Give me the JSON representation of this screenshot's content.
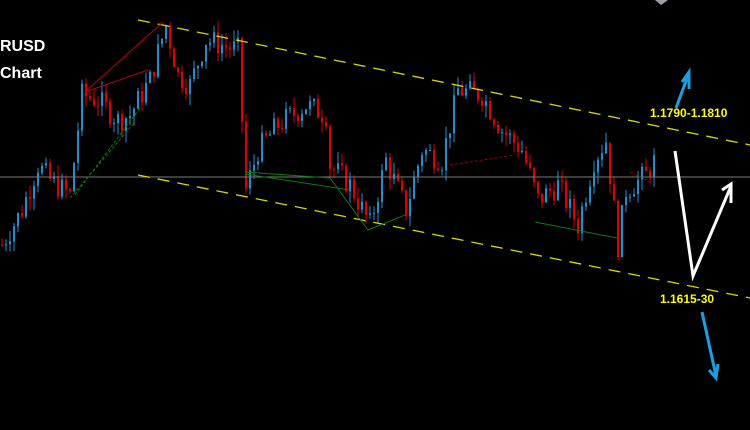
{
  "title": {
    "line1": "RUSD",
    "line2": "Chart"
  },
  "labels": {
    "upper_target": "1.1790-1.1810",
    "lower_target": "1.1615-30"
  },
  "colors": {
    "background": "#000000",
    "bull_candle": "#1e90d0",
    "bear_candle": "#e00000",
    "channel": "#e6e600",
    "current_price_line": "#808080",
    "forecast_arrow": "#ffffff",
    "target_arrows": "#1aa0e0",
    "labels": "#ffff00"
  },
  "chart_data": {
    "type": "candlestick",
    "title": "",
    "xlabel": "",
    "ylabel": "",
    "ylim": [
      1.1482,
      1.1912
    ],
    "grid": false,
    "current_price": 1.1735,
    "price_path": {
      "bar": [
        0,
        5,
        9,
        12,
        17,
        20,
        24,
        29,
        32,
        37,
        41,
        44,
        47,
        51,
        59,
        60,
        61,
        64,
        69,
        76,
        81,
        82,
        87,
        92,
        96,
        101,
        105,
        110,
        114,
        120,
        125,
        130,
        134,
        139,
        144,
        148,
        151,
        154,
        156,
        161,
        164
      ],
      "close": [
        1.1667,
        1.1702,
        1.1747,
        1.1732,
        1.1717,
        1.1817,
        1.1812,
        1.1792,
        1.1797,
        1.1832,
        1.1887,
        1.1837,
        1.1827,
        1.1872,
        1.1862,
        1.1792,
        1.1722,
        1.1762,
        1.1787,
        1.1807,
        1.1797,
        1.1747,
        1.1727,
        1.1687,
        1.1752,
        1.1702,
        1.1762,
        1.1752,
        1.1822,
        1.1817,
        1.1782,
        1.1762,
        1.1712,
        1.1727,
        1.1687,
        1.1752,
        1.1772,
        1.1667,
        1.1722,
        1.1737,
        1.1757
      ]
    },
    "channel": {
      "upper": {
        "from": [
          34,
          1.1892
        ],
        "to": [
          187,
          1.1767
        ]
      },
      "lower": {
        "from": [
          34,
          1.1737
        ],
        "to": [
          187,
          1.1614
        ]
      }
    },
    "targets": [
      {
        "label": "1.1790-1.1810",
        "direction": "up"
      },
      {
        "label": "1.1615-30",
        "direction": "down"
      }
    ]
  }
}
